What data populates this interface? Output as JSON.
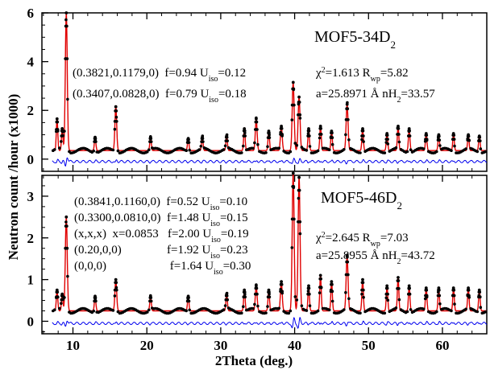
{
  "chart_data": [
    {
      "type": "line",
      "title": "MOF5-34D",
      "title_sub": "2",
      "xlim": [
        5.8,
        66
      ],
      "ylim": [
        -0.5,
        6
      ],
      "yticks": [
        0,
        2,
        4,
        6
      ],
      "xlabel": "2Theta (deg.)",
      "ylabel": "Neutron count /hour (x1000)",
      "baseline": 0.35,
      "difference_offset": -0.1,
      "peaks": [
        {
          "x": 7.85,
          "y": 1.3,
          "w": 0.1
        },
        {
          "x": 8.55,
          "y": 0.9,
          "w": 0.1
        },
        {
          "x": 9.1,
          "y": 5.65,
          "w": 0.13
        },
        {
          "x": 13.0,
          "y": 0.55,
          "w": 0.1
        },
        {
          "x": 15.8,
          "y": 1.8,
          "w": 0.12
        },
        {
          "x": 20.5,
          "y": 0.55,
          "w": 0.1
        },
        {
          "x": 25.6,
          "y": 0.5,
          "w": 0.1
        },
        {
          "x": 27.5,
          "y": 0.55,
          "w": 0.1
        },
        {
          "x": 30.8,
          "y": 0.6,
          "w": 0.1
        },
        {
          "x": 33.2,
          "y": 0.9,
          "w": 0.1
        },
        {
          "x": 34.8,
          "y": 1.3,
          "w": 0.12
        },
        {
          "x": 36.5,
          "y": 0.8,
          "w": 0.1
        },
        {
          "x": 38.2,
          "y": 1.0,
          "w": 0.12
        },
        {
          "x": 39.8,
          "y": 2.8,
          "w": 0.13
        },
        {
          "x": 40.6,
          "y": 2.2,
          "w": 0.13
        },
        {
          "x": 41.9,
          "y": 0.9,
          "w": 0.1
        },
        {
          "x": 43.5,
          "y": 1.0,
          "w": 0.1
        },
        {
          "x": 45.0,
          "y": 0.8,
          "w": 0.1
        },
        {
          "x": 47.1,
          "y": 1.9,
          "w": 0.13
        },
        {
          "x": 49.2,
          "y": 0.9,
          "w": 0.1
        },
        {
          "x": 52.5,
          "y": 0.7,
          "w": 0.1
        },
        {
          "x": 54.0,
          "y": 1.0,
          "w": 0.1
        },
        {
          "x": 55.5,
          "y": 0.9,
          "w": 0.1
        },
        {
          "x": 57.8,
          "y": 0.7,
          "w": 0.1
        },
        {
          "x": 59.5,
          "y": 0.65,
          "w": 0.1
        },
        {
          "x": 61.5,
          "y": 0.7,
          "w": 0.1
        },
        {
          "x": 63.5,
          "y": 0.65,
          "w": 0.1
        },
        {
          "x": 65.0,
          "y": 0.6,
          "w": 0.1
        }
      ],
      "annotations": [
        {
          "main": "(0.3821,0.1179,0)  f=0.94 U",
          "sub": "iso",
          "post": "=0.12"
        },
        {
          "main": "(0.3407,0.0828,0)  f=0.79 U",
          "sub": "iso",
          "post": "=0.18"
        }
      ],
      "stats": [
        {
          "pre": "χ",
          "sup": "2",
          "mid": "=1.613  R",
          "sub": "wp",
          "post": "=5.82"
        },
        {
          "pre": "a=25.8971 Å  nH",
          "sub": "2",
          "post": "=33.57"
        }
      ],
      "colors": {
        "observed": "#000000",
        "calculated": "#e00000",
        "difference": "#0000ee"
      }
    },
    {
      "type": "line",
      "title": "MOF5-46D",
      "title_sub": "2",
      "xlim": [
        5.8,
        66
      ],
      "ylim": [
        -0.3,
        3.5
      ],
      "yticks": [
        0,
        1,
        2,
        3
      ],
      "xticks": [
        10,
        20,
        30,
        40,
        50,
        60
      ],
      "xlabel": "2Theta (deg.)",
      "baseline": 0.25,
      "difference_offset": -0.05,
      "peaks": [
        {
          "x": 7.85,
          "y": 0.5,
          "w": 0.1
        },
        {
          "x": 8.55,
          "y": 0.4,
          "w": 0.1
        },
        {
          "x": 9.1,
          "y": 2.25,
          "w": 0.13
        },
        {
          "x": 13.0,
          "y": 0.35,
          "w": 0.1
        },
        {
          "x": 15.8,
          "y": 0.75,
          "w": 0.12
        },
        {
          "x": 20.5,
          "y": 0.35,
          "w": 0.1
        },
        {
          "x": 25.6,
          "y": 0.35,
          "w": 0.1
        },
        {
          "x": 30.8,
          "y": 0.4,
          "w": 0.1
        },
        {
          "x": 33.2,
          "y": 0.5,
          "w": 0.1
        },
        {
          "x": 34.8,
          "y": 0.6,
          "w": 0.12
        },
        {
          "x": 36.5,
          "y": 0.5,
          "w": 0.1
        },
        {
          "x": 38.2,
          "y": 0.7,
          "w": 0.12
        },
        {
          "x": 39.8,
          "y": 3.3,
          "w": 0.13
        },
        {
          "x": 40.6,
          "y": 3.2,
          "w": 0.13
        },
        {
          "x": 41.9,
          "y": 0.6,
          "w": 0.1
        },
        {
          "x": 43.5,
          "y": 0.85,
          "w": 0.1
        },
        {
          "x": 45.0,
          "y": 0.7,
          "w": 0.1
        },
        {
          "x": 47.1,
          "y": 1.3,
          "w": 0.13
        },
        {
          "x": 49.2,
          "y": 0.75,
          "w": 0.1
        },
        {
          "x": 52.5,
          "y": 0.6,
          "w": 0.1
        },
        {
          "x": 54.0,
          "y": 0.8,
          "w": 0.1
        },
        {
          "x": 55.5,
          "y": 0.6,
          "w": 0.1
        },
        {
          "x": 57.8,
          "y": 0.55,
          "w": 0.1
        },
        {
          "x": 59.5,
          "y": 0.55,
          "w": 0.1
        },
        {
          "x": 61.5,
          "y": 0.55,
          "w": 0.1
        },
        {
          "x": 63.5,
          "y": 0.55,
          "w": 0.1
        },
        {
          "x": 65.0,
          "y": 0.5,
          "w": 0.1
        }
      ],
      "annotations": [
        {
          "main": "(0.3841,0.1160,0)  f=0.52 U",
          "sub": "iso",
          "post": "=0.10"
        },
        {
          "main": "(0.3300,0.0810,0)  f=1.48 U",
          "sub": "iso",
          "post": "=0.15"
        },
        {
          "main": "(x,x,x)  x=0.0853   f=2.00 U",
          "sub": "iso",
          "post": "=0.19"
        },
        {
          "main": "(0.20,0,0)               f=1.92 U",
          "sub": "iso",
          "post": "=0.23"
        },
        {
          "main": "(0,0,0)                     f=1.64 U",
          "sub": "iso",
          "post": "=0.30"
        }
      ],
      "stats": [
        {
          "pre": "χ",
          "sup": "2",
          "mid": "=2.645  R",
          "sub": "wp",
          "post": "=7.03"
        },
        {
          "pre": "a=25.8955 Å  nH",
          "sub": "2",
          "post": "=43.72"
        }
      ],
      "colors": {
        "observed": "#000000",
        "calculated": "#e00000",
        "difference": "#0000ee"
      }
    }
  ]
}
